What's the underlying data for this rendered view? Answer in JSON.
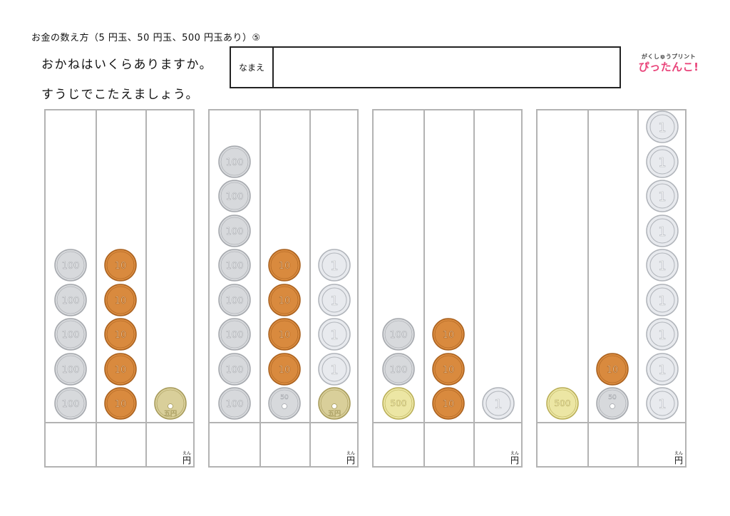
{
  "title": "お金の数え方（5 円玉、50 円玉、500 円玉あり）⑤",
  "instructions": [
    "おかねはいくらありますか。",
    "すうじでこたえましょう。"
  ],
  "name_label": "なまえ",
  "logo": {
    "top": "がくしゅうプリント",
    "bottom": "ぴったんこ!"
  },
  "yen_label": "円",
  "yen_ruby": "えん",
  "coin_text": {
    "100": "100",
    "10": "10",
    "1": "1",
    "5": "五円",
    "50": "50",
    "500": "500"
  },
  "problems": [
    {
      "columns": [
        {
          "coin": "100",
          "count": 5
        },
        {
          "coin": "10",
          "count": 5
        },
        {
          "coin": "5",
          "count": 1
        }
      ]
    },
    {
      "columns": [
        {
          "coin": "100",
          "count": 8
        },
        {
          "coin": "10",
          "count": 4,
          "bottom": "50"
        },
        {
          "coin": "1",
          "count": 4,
          "bottom": "5"
        }
      ]
    },
    {
      "columns": [
        {
          "coin": "100",
          "count": 2,
          "bottom": "500"
        },
        {
          "coin": "10",
          "count": 3
        },
        {
          "coin": "1",
          "count": 1
        }
      ]
    },
    {
      "columns": [
        {
          "coin": "500",
          "count": 1
        },
        {
          "coin": "10",
          "count": 1,
          "bottom": "50"
        },
        {
          "coin": "1",
          "count": 9
        }
      ]
    }
  ],
  "colors": {
    "silver": "#d7d9dc",
    "silver_edge": "#a5a8ad",
    "copper": "#d98a3e",
    "copper_edge": "#a9611f",
    "brass": "#d9cf9a",
    "brass_edge": "#a69a5a",
    "gold500": "#ece6a4",
    "gold500_edge": "#b9ae57",
    "grid": "#b3b3b3"
  }
}
